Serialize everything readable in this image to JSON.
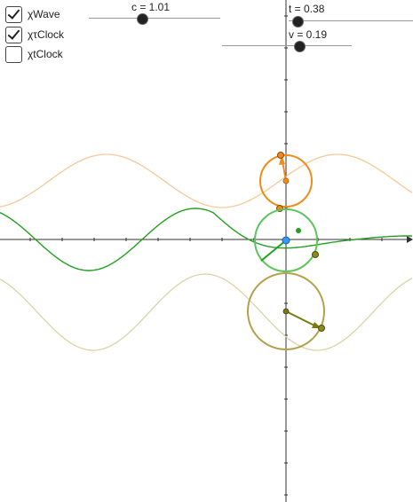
{
  "checkboxes": [
    {
      "label": "χWave",
      "checked": true
    },
    {
      "label": "χτClock",
      "checked": true
    },
    {
      "label": "χtClock",
      "checked": false
    }
  ],
  "sliders": {
    "c": {
      "label": "c = 1.01",
      "value": 1.01
    },
    "t": {
      "label": "t = 0.38",
      "value": 0.38
    },
    "v": {
      "label": "v = 0.19",
      "value": 0.19
    }
  },
  "colors": {
    "wave": "#22a022",
    "tau_clock": "#f08c1c",
    "t_clock": "#b5a04a",
    "t_clock_vec": "#7a7a10",
    "point": "#3399ff"
  }
}
